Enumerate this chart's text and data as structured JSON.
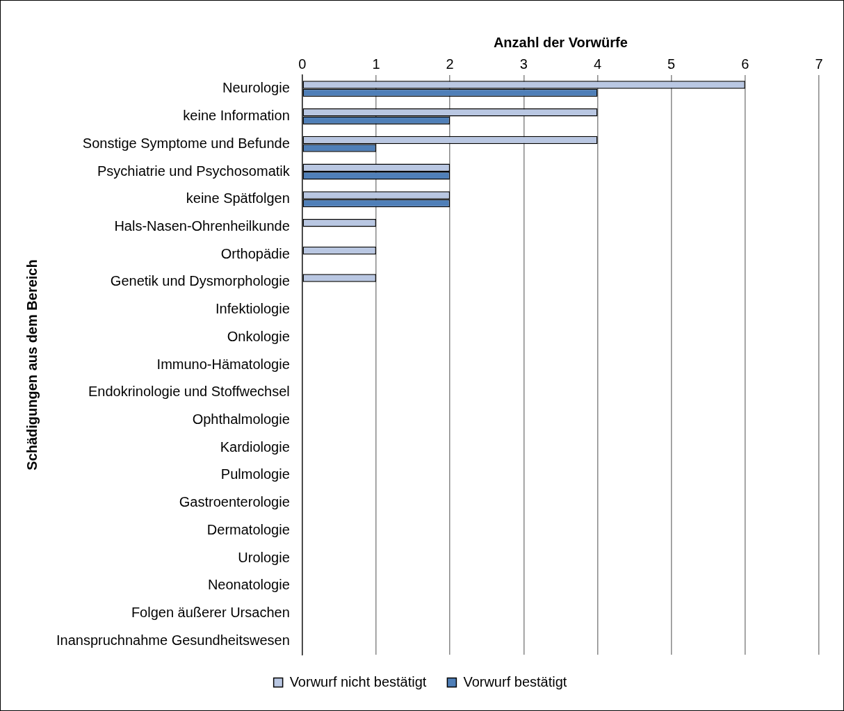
{
  "chart_data": {
    "type": "bar",
    "orientation": "horizontal",
    "xlabel": "Anzahl der Vorwürfe",
    "ylabel": "Schädigungen aus dem Bereich",
    "categories": [
      "Neurologie",
      "keine Information",
      "Sonstige Symptome und Befunde",
      "Psychiatrie und Psychosomatik",
      "keine Spätfolgen",
      "Hals-Nasen-Ohrenheilkunde",
      "Orthopädie",
      "Genetik und Dysmorphologie",
      "Infektiologie",
      "Onkologie",
      "Immuno-Hämatologie",
      "Endokrinologie und Stoffwechsel",
      "Ophthalmologie",
      "Kardiologie",
      "Pulmologie",
      "Gastroenterologie",
      "Dermatologie",
      "Urologie",
      "Neonatologie",
      "Folgen äußerer Ursachen",
      "Inanspruchnahme Gesundheitswesen"
    ],
    "series": [
      {
        "name": "Vorwurf nicht bestätigt",
        "color": "#b9c7e2",
        "values": [
          6,
          4,
          4,
          2,
          2,
          1,
          1,
          1,
          0,
          0,
          0,
          0,
          0,
          0,
          0,
          0,
          0,
          0,
          0,
          0,
          0
        ]
      },
      {
        "name": "Vorwurf bestätigt",
        "color": "#4f7fb8",
        "values": [
          4,
          2,
          1,
          2,
          2,
          0,
          0,
          0,
          0,
          0,
          0,
          0,
          0,
          0,
          0,
          0,
          0,
          0,
          0,
          0,
          0
        ]
      }
    ],
    "xlim": [
      0,
      7
    ],
    "xticks": [
      0,
      1,
      2,
      3,
      4,
      5,
      6,
      7
    ],
    "grid": "x",
    "legend": "bottom"
  }
}
